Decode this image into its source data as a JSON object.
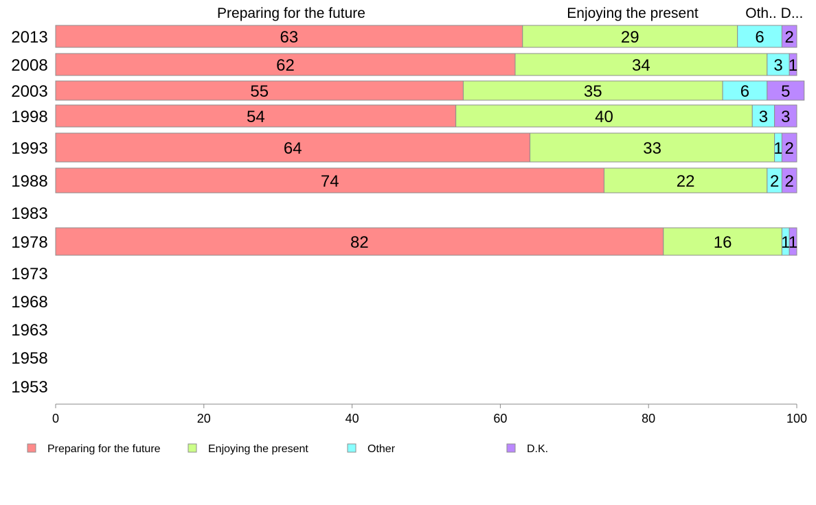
{
  "chart_data": {
    "type": "bar",
    "orientation": "horizontal",
    "stacked": true,
    "categories": [
      "2013",
      "2008",
      "2003",
      "1998",
      "1993",
      "1988",
      "1983",
      "1978",
      "1973",
      "1968",
      "1963",
      "1958",
      "1953"
    ],
    "series": [
      {
        "name": "Preparing for the future",
        "color": "#ff8a8a",
        "values": [
          63,
          62,
          55,
          54,
          64,
          74,
          null,
          82,
          null,
          null,
          null,
          null,
          null
        ]
      },
      {
        "name": "Enjoying the present",
        "color": "#ccff88",
        "values": [
          29,
          34,
          35,
          40,
          33,
          22,
          null,
          16,
          null,
          null,
          null,
          null,
          null
        ]
      },
      {
        "name": "Other",
        "color": "#88ffff",
        "values": [
          6,
          3,
          6,
          3,
          1,
          2,
          null,
          1,
          null,
          null,
          null,
          null,
          null
        ]
      },
      {
        "name": "D.K.",
        "color": "#bb88ff",
        "values": [
          2,
          1,
          5,
          3,
          2,
          2,
          null,
          1,
          null,
          null,
          null,
          null,
          null
        ]
      }
    ],
    "column_headers": [
      "Preparing for the future",
      "Enjoying the present",
      "Oth..",
      "D..."
    ],
    "xlim": [
      0,
      100
    ],
    "xticks": [
      0,
      20,
      40,
      60,
      80,
      100
    ],
    "grid": false,
    "legend_position": "bottom"
  }
}
